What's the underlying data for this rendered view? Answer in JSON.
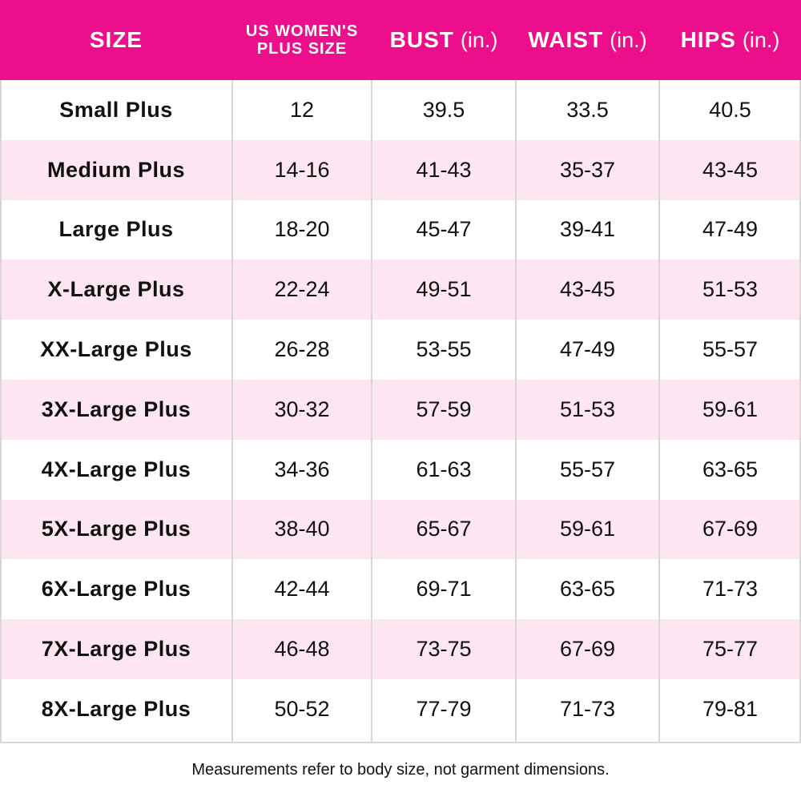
{
  "colors": {
    "header_background": "#ec0e8a",
    "header_text": "#ffffff",
    "alt_row_background": "#fde6f2",
    "row_background": "#ffffff",
    "grid_line": "#d6d6d6"
  },
  "header": {
    "size": "SIZE",
    "us_womens_line1": "US WOMEN'S",
    "us_womens_line2": "PLUS SIZE",
    "bust": "BUST",
    "waist": "WAIST",
    "hips": "HIPS",
    "unit": "(in.)"
  },
  "rows": [
    {
      "size": "Small Plus",
      "us": "12",
      "bust": "39.5",
      "waist": "33.5",
      "hips": "40.5"
    },
    {
      "size": "Medium Plus",
      "us": "14-16",
      "bust": "41-43",
      "waist": "35-37",
      "hips": "43-45"
    },
    {
      "size": "Large Plus",
      "us": "18-20",
      "bust": "45-47",
      "waist": "39-41",
      "hips": "47-49"
    },
    {
      "size": "X-Large Plus",
      "us": "22-24",
      "bust": "49-51",
      "waist": "43-45",
      "hips": "51-53"
    },
    {
      "size": "XX-Large Plus",
      "us": "26-28",
      "bust": "53-55",
      "waist": "47-49",
      "hips": "55-57"
    },
    {
      "size": "3X-Large Plus",
      "us": "30-32",
      "bust": "57-59",
      "waist": "51-53",
      "hips": "59-61"
    },
    {
      "size": "4X-Large Plus",
      "us": "34-36",
      "bust": "61-63",
      "waist": "55-57",
      "hips": "63-65"
    },
    {
      "size": "5X-Large Plus",
      "us": "38-40",
      "bust": "65-67",
      "waist": "59-61",
      "hips": "67-69"
    },
    {
      "size": "6X-Large Plus",
      "us": "42-44",
      "bust": "69-71",
      "waist": "63-65",
      "hips": "71-73"
    },
    {
      "size": "7X-Large Plus",
      "us": "46-48",
      "bust": "73-75",
      "waist": "67-69",
      "hips": "75-77"
    },
    {
      "size": "8X-Large Plus",
      "us": "50-52",
      "bust": "77-79",
      "waist": "71-73",
      "hips": "79-81"
    }
  ],
  "footnote": "Measurements refer to body size, not garment dimensions."
}
